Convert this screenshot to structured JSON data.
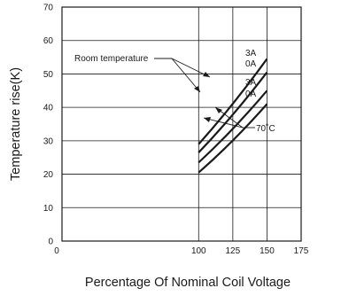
{
  "chart_data": {
    "type": "line",
    "xlabel": "Percentage Of Nominal Coil Voltage",
    "ylabel": "Temperature rise(K)",
    "xlim": [
      0,
      175
    ],
    "ylim": [
      0,
      70
    ],
    "x_ticks": [
      0,
      100,
      125,
      150,
      175
    ],
    "y_ticks": [
      0,
      10,
      20,
      30,
      40,
      50,
      60,
      70
    ],
    "grid": true,
    "series": [
      {
        "name": "",
        "group": "Room temperature",
        "current": "3A",
        "x": [
          100,
          150
        ],
        "y": [
          29,
          54.5
        ]
      },
      {
        "name": "",
        "group": "Room temperature",
        "current": "0A",
        "x": [
          100,
          150
        ],
        "y": [
          26.5,
          50.5
        ]
      },
      {
        "name": "",
        "group": "70˚C",
        "current": "3A",
        "x": [
          100,
          150
        ],
        "y": [
          23.5,
          45
        ]
      },
      {
        "name": "",
        "group": "70˚C",
        "current": "0A",
        "x": [
          100,
          150
        ],
        "y": [
          20.5,
          41
        ]
      }
    ],
    "annotations": {
      "room_temperature": "Room temperature",
      "seventy_c": "70˚C",
      "labels": [
        "3A",
        "0A",
        "3A",
        "0A"
      ]
    }
  }
}
